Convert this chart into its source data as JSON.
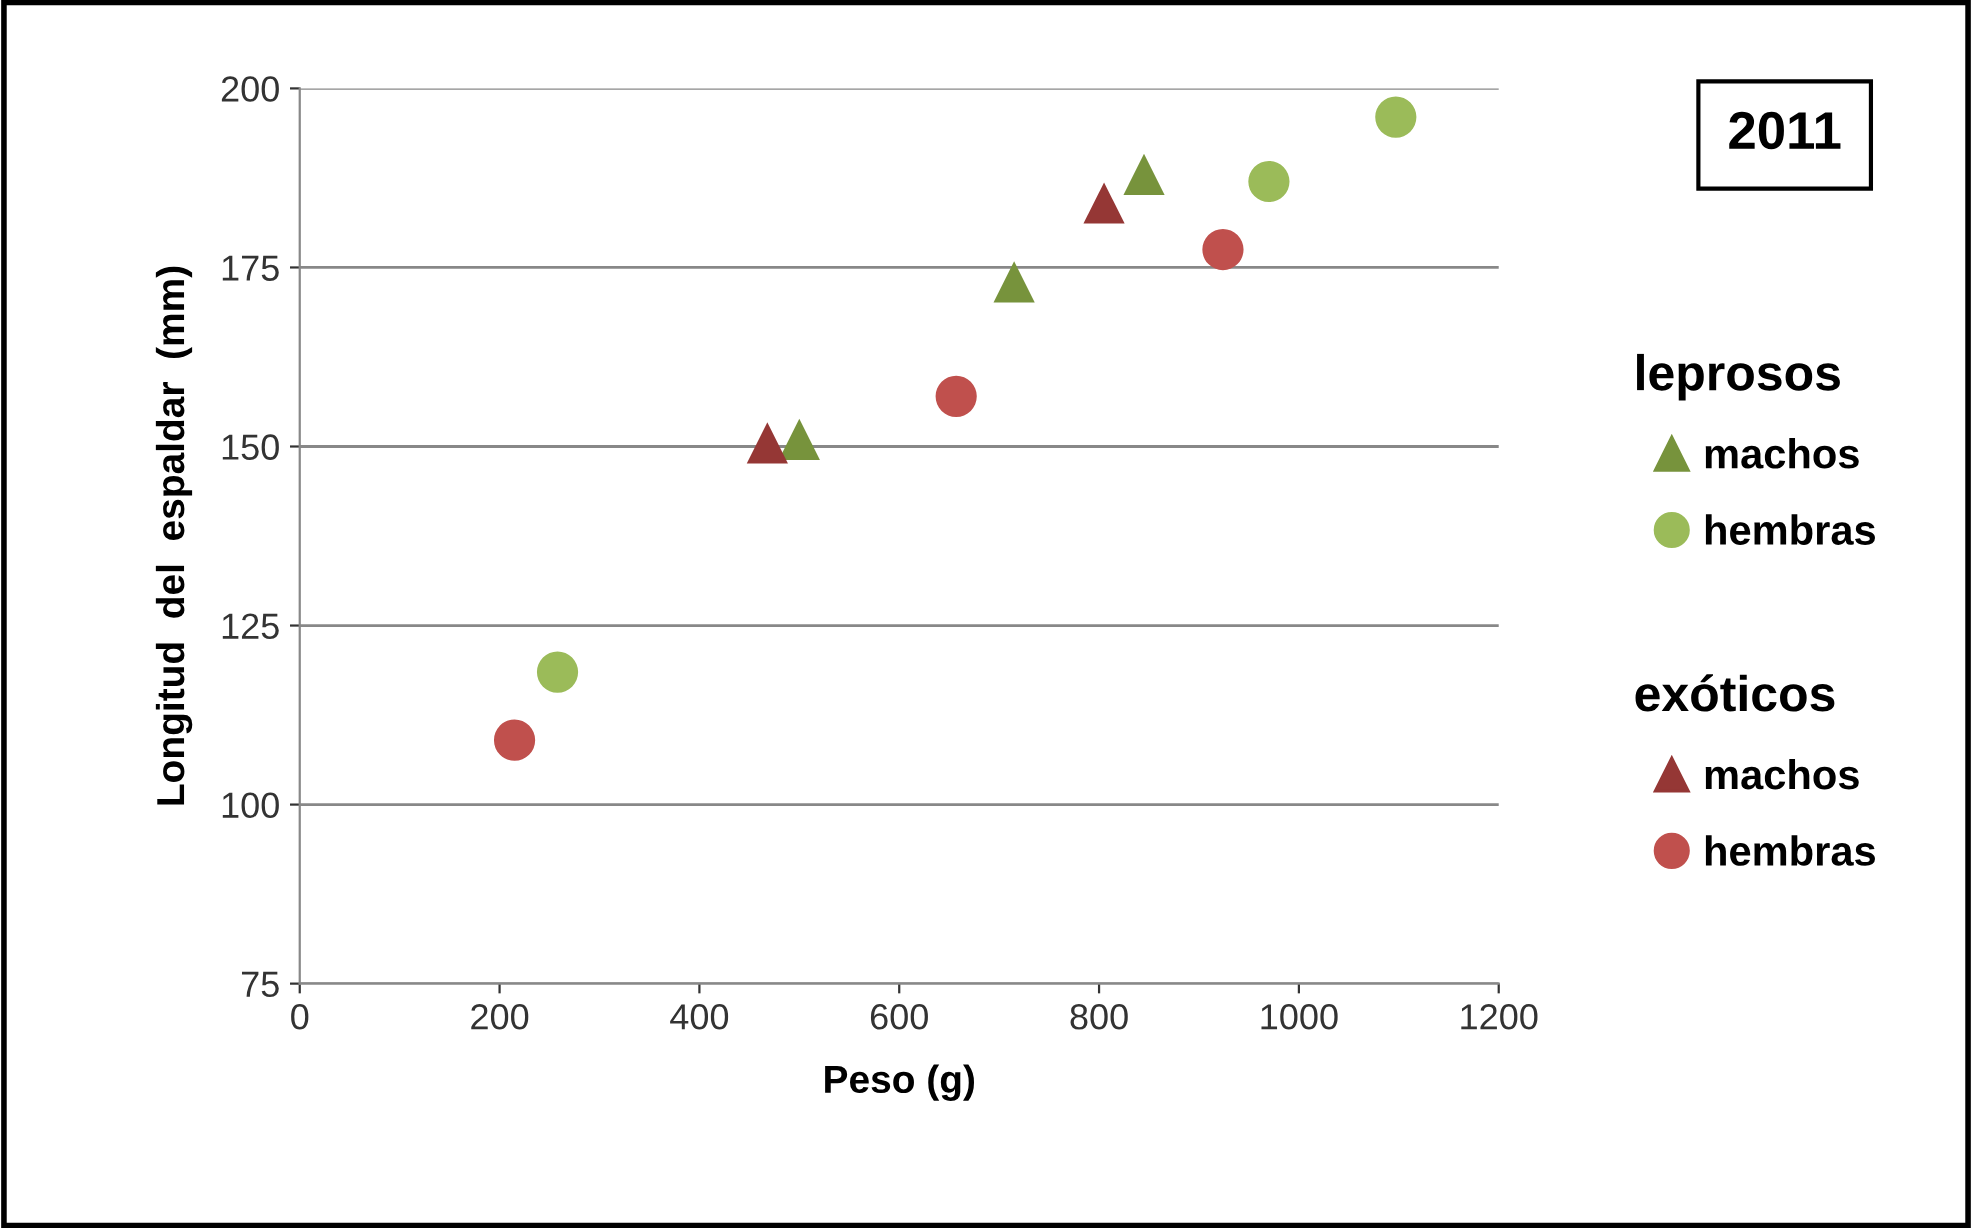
{
  "chart_data": {
    "type": "scatter",
    "title": "2011",
    "xlabel": "Peso (g)",
    "ylabel": "Longitud  del  espaldar  (mm)",
    "xlim": [
      0,
      1200
    ],
    "xticks": [
      0,
      200,
      400,
      600,
      800,
      1000,
      1200
    ],
    "ylim": [
      75,
      200
    ],
    "yticks": [
      75,
      100,
      125,
      150,
      175,
      200
    ],
    "grid": "y",
    "legend": "right",
    "annotations": [
      "leprosos",
      "exóticos"
    ],
    "series": [
      {
        "name": "machos",
        "color": "#77933c",
        "marker": "triangle",
        "x": [
          500,
          715,
          845
        ],
        "values": [
          151,
          173,
          188
        ]
      },
      {
        "name": "hembras",
        "color": "#9bbb59",
        "marker": "circle",
        "x": [
          258,
          970,
          1097
        ],
        "values": [
          118.5,
          187,
          196
        ]
      },
      {
        "name": "machos",
        "color": "#953735",
        "marker": "triangle",
        "x": [
          468,
          805
        ],
        "values": [
          150.5,
          184
        ]
      },
      {
        "name": "hembras",
        "color": "#c0504d",
        "marker": "circle",
        "x": [
          215,
          657,
          924
        ],
        "values": [
          109,
          157,
          177.5
        ]
      }
    ]
  }
}
